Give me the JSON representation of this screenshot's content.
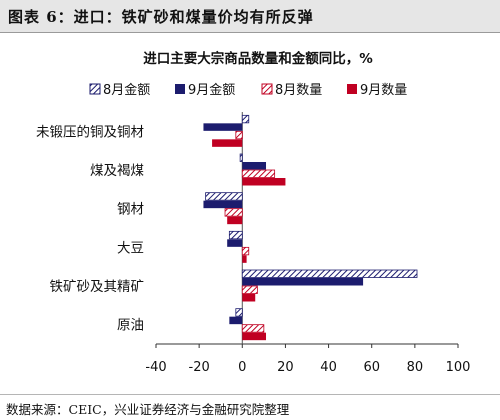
{
  "figure": {
    "title": "图表 6：进口：铁矿砂和煤量价均有所反弹",
    "source": "数据来源：CEIC，兴业证券经济与金融研究院整理"
  },
  "colors": {
    "navy": "#1c1c6e",
    "red": "#c00022",
    "header_bg": "#e6e6e6"
  },
  "chart_data": {
    "type": "bar",
    "orientation": "horizontal",
    "title": "进口主要大宗商品数量和金额同比，%",
    "categories": [
      "未锻压的铜及铜材",
      "煤及褐煤",
      "钢材",
      "大豆",
      "铁矿砂及其精矿",
      "原油"
    ],
    "series": [
      {
        "name": "8月金额",
        "style": "hatched",
        "color": "#1c1c6e",
        "values": [
          3,
          -1,
          -17,
          -6,
          81,
          -3
        ]
      },
      {
        "name": "9月金额",
        "style": "solid",
        "color": "#1c1c6e",
        "values": [
          -18,
          11,
          -18,
          -7,
          56,
          -6
        ]
      },
      {
        "name": "8月数量",
        "style": "hatched",
        "color": "#c00022",
        "values": [
          -3,
          15,
          -8,
          3,
          7,
          10
        ]
      },
      {
        "name": "9月数量",
        "style": "solid",
        "color": "#c00022",
        "values": [
          -14,
          20,
          -7,
          2,
          6,
          11
        ]
      }
    ],
    "xlim": [
      -40,
      100
    ],
    "xticks": [
      -40,
      -20,
      0,
      20,
      40,
      60,
      80,
      100
    ],
    "legend_position": "top",
    "grid": false
  }
}
